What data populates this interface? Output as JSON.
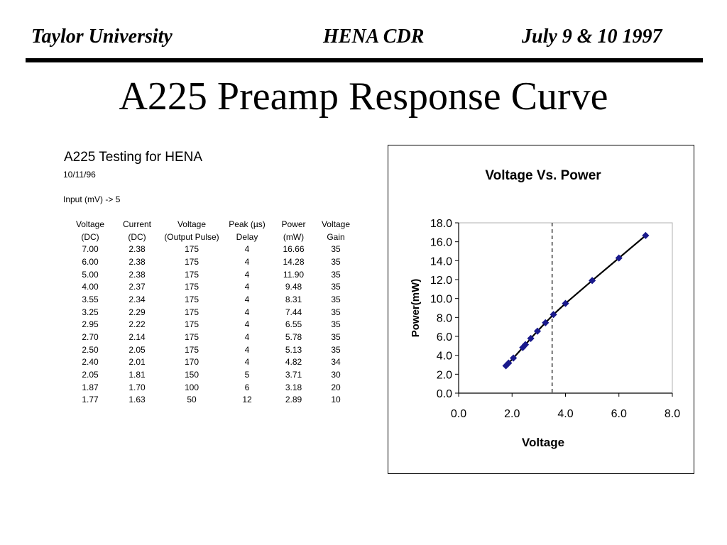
{
  "header": {
    "left": "Taylor University",
    "center": "HENA CDR",
    "right": "July 9 & 10 1997"
  },
  "slide_title": "A225 Preamp Response Curve",
  "sheet": {
    "title": "A225 Testing for HENA",
    "date": "10/11/96",
    "input_note": "Input (mV) -> 5",
    "columns": [
      [
        "Voltage",
        "(DC)"
      ],
      [
        "Current",
        "(DC)"
      ],
      [
        "Voltage",
        "(Output Pulse)"
      ],
      [
        "Peak (µs)",
        "Delay"
      ],
      [
        "Power",
        "(mW)"
      ],
      [
        "Voltage",
        "Gain"
      ]
    ],
    "rows": [
      [
        "7.00",
        "2.38",
        "175",
        "4",
        "16.66",
        "35"
      ],
      [
        "6.00",
        "2.38",
        "175",
        "4",
        "14.28",
        "35"
      ],
      [
        "5.00",
        "2.38",
        "175",
        "4",
        "11.90",
        "35"
      ],
      [
        "4.00",
        "2.37",
        "175",
        "4",
        "9.48",
        "35"
      ],
      [
        "3.55",
        "2.34",
        "175",
        "4",
        "8.31",
        "35"
      ],
      [
        "3.25",
        "2.29",
        "175",
        "4",
        "7.44",
        "35"
      ],
      [
        "2.95",
        "2.22",
        "175",
        "4",
        "6.55",
        "35"
      ],
      [
        "2.70",
        "2.14",
        "175",
        "4",
        "5.78",
        "35"
      ],
      [
        "2.50",
        "2.05",
        "175",
        "4",
        "5.13",
        "35"
      ],
      [
        "2.40",
        "2.01",
        "170",
        "4",
        "4.82",
        "34"
      ],
      [
        "2.05",
        "1.81",
        "150",
        "5",
        "3.71",
        "30"
      ],
      [
        "1.87",
        "1.70",
        "100",
        "6",
        "3.18",
        "20"
      ],
      [
        "1.77",
        "1.63",
        "50",
        "12",
        "2.89",
        "10"
      ]
    ]
  },
  "chart_data": {
    "type": "scatter",
    "title": "Voltage Vs. Power",
    "xlabel": "Voltage",
    "ylabel": "Power(mW)",
    "xlim": [
      0,
      8
    ],
    "ylim": [
      0,
      18
    ],
    "xticks": [
      "0.0",
      "2.0",
      "4.0",
      "6.0",
      "8.0"
    ],
    "yticks": [
      "0.0",
      "2.0",
      "4.0",
      "6.0",
      "8.0",
      "10.0",
      "12.0",
      "14.0",
      "16.0",
      "18.0"
    ],
    "grid": false,
    "legend": "none",
    "marker": "diamond",
    "marker_color": "#1a1a8c",
    "line_color": "#000000",
    "trendline": true,
    "vertical_reference_x": 3.5,
    "x": [
      7.0,
      6.0,
      5.0,
      4.0,
      3.55,
      3.25,
      2.95,
      2.7,
      2.5,
      2.4,
      2.05,
      1.87,
      1.77
    ],
    "y": [
      16.66,
      14.28,
      11.9,
      9.48,
      8.31,
      7.44,
      6.55,
      5.78,
      5.13,
      4.82,
      3.71,
      3.18,
      2.89
    ]
  }
}
